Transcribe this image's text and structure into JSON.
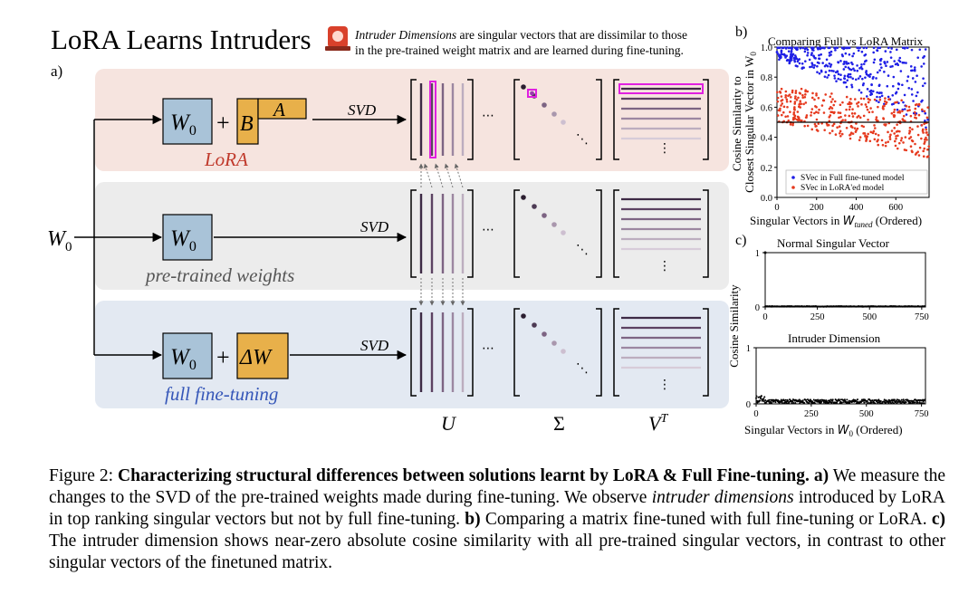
{
  "header": {
    "title": "LoRA Learns Intruders",
    "badge_icon": "siren-icon",
    "desc_line1_em": "Intruder Dimensions",
    "desc_line1_rest": " are singular vectors that are dissimilar to those",
    "desc_line2": "in the pre-trained weight matrix and are learned during fine-tuning."
  },
  "panel_a": {
    "label": "a)",
    "input_label": "W",
    "input_sub": "0",
    "rows": [
      {
        "name": "LoRA",
        "label": "LoRA",
        "color": "#c0392b",
        "bg": "#f6e4df"
      },
      {
        "name": "pretrained",
        "label": "pre-trained weights",
        "color": "#555555",
        "bg": "#ececec"
      },
      {
        "name": "full",
        "label": "full fine-tuning",
        "color": "#3556b8",
        "bg": "#e3e9f2"
      }
    ],
    "box_w": "W",
    "box_w_sub": "0",
    "plus": "+",
    "lora_b": "B",
    "lora_a": "A",
    "delta_w": "ΔW",
    "svd_label": "SVD",
    "ellipsis": "⋯",
    "vdots": "⋮",
    "ddots": "⋱",
    "axis_u": "U",
    "axis_sigma": "Σ",
    "axis_v": "V",
    "axis_v_sup": "T"
  },
  "panel_b": {
    "label": "b)",
    "title": "Comparing Full vs LoRA Matrix",
    "ylabel_line1": "Cosine Similarity to",
    "ylabel_line2": "Closest Singular Vector in W",
    "ylabel_sub": "0",
    "xlabel_pre": "Singular Vectors in ",
    "xlabel_w": "W",
    "xlabel_sub": "tuned",
    "xlabel_post": " (Ordered)",
    "legend": [
      "SVec in Full fine-tuned model",
      "SVec in LoRA'ed model"
    ]
  },
  "panel_c": {
    "label": "c)",
    "top_title": "Normal Singular Vector",
    "bottom_title": "Intruder Dimension",
    "ylabel": "Cosine Similarity",
    "xlabel_pre": "Singular Vectors in ",
    "xlabel_w": "W",
    "xlabel_sub": "0",
    "xlabel_post": " (Ordered)"
  },
  "chart_data": [
    {
      "type": "scatter",
      "title": "Comparing Full vs LoRA Matrix",
      "xlabel": "Singular Vectors in W_tuned (Ordered)",
      "ylabel": "Cosine Similarity to Closest Singular Vector in W_0",
      "xlim": [
        0,
        768
      ],
      "ylim": [
        0,
        1.0
      ],
      "xticks": [
        "0",
        "200",
        "400",
        "600"
      ],
      "yticks": [
        "0.0",
        "0.2",
        "0.4",
        "0.6",
        "0.8",
        "1.0"
      ],
      "hline": 0.5,
      "series": [
        {
          "name": "SVec in Full fine-tuned model",
          "color": "#1f1fe6",
          "trend": [
            [
              0,
              0.97
            ],
            [
              200,
              0.93
            ],
            [
              400,
              0.87
            ],
            [
              600,
              0.8
            ],
            [
              768,
              0.72
            ]
          ]
        },
        {
          "name": "SVec in LoRA'ed model",
          "color": "#e63a1f",
          "trend": [
            [
              0,
              0.62
            ],
            [
              200,
              0.58
            ],
            [
              400,
              0.53
            ],
            [
              600,
              0.49
            ],
            [
              768,
              0.44
            ]
          ]
        }
      ],
      "legend_position": "bottom-right"
    },
    {
      "type": "scatter",
      "title": "Normal Singular Vector",
      "xlim": [
        0,
        768
      ],
      "ylim": [
        0,
        1
      ],
      "xticks": [
        "0",
        "250",
        "500",
        "750"
      ],
      "yticks": [
        "0",
        "1"
      ],
      "spike": {
        "x": 0,
        "y": 1.0
      },
      "baseline": 0.0
    },
    {
      "type": "scatter",
      "title": "Intruder Dimension",
      "xlim": [
        0,
        768
      ],
      "ylim": [
        0,
        1
      ],
      "xticks": [
        "0",
        "250",
        "500",
        "750"
      ],
      "yticks": [
        "0",
        "1"
      ],
      "max_value": 0.15,
      "typical_value": 0.05
    }
  ],
  "caption": {
    "fig": "Figure 2: ",
    "bold1": "Characterizing structural differences between solutions learnt by LoRA & Full Fine-tuning. a)",
    "t1": " We measure the changes to the SVD of the pre-trained weights made during fine-tuning. We observe ",
    "em1": "intruder dimensions",
    "t2": " introduced by LoRA in top ranking singular vectors but not by full fine-tuning. ",
    "bold2": "b)",
    "t3": " Comparing a matrix fine-tuned with full fine-tuning or LoRA. ",
    "bold3": "c)",
    "t4": " The intruder dimension shows near-zero absolute cosine similarity with all pre-trained singular vectors, in contrast to other singular vectors of the finetuned matrix."
  }
}
